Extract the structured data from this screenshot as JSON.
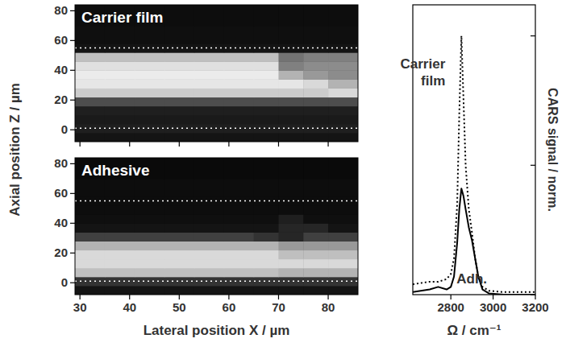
{
  "chart_data": [
    {
      "type": "heatmap",
      "title": "Carrier film",
      "ylabel": "Axial position Z / µm",
      "xlim": [
        29,
        86
      ],
      "ylim": [
        -8,
        84
      ],
      "xticks": [
        30,
        40,
        50,
        60,
        70,
        80
      ],
      "yticks": [
        0,
        20,
        40,
        60,
        80
      ],
      "tick_labels": "y",
      "zlim": [
        0,
        1
      ],
      "reference_lines": [
        1,
        55
      ],
      "x_edges": [
        29,
        35,
        41,
        47,
        53,
        59,
        65,
        70,
        75,
        80,
        86
      ],
      "y_edges": [
        -8,
        -2,
        4,
        10,
        16,
        22,
        28,
        34,
        40,
        46,
        52,
        58,
        70,
        84
      ],
      "cells": [
        [
          0.08,
          0.08,
          0.08,
          0.08,
          0.08,
          0.08,
          0.08,
          0.08,
          0.08,
          0.08
        ],
        [
          0.12,
          0.12,
          0.12,
          0.12,
          0.12,
          0.12,
          0.12,
          0.12,
          0.12,
          0.12
        ],
        [
          0.1,
          0.1,
          0.1,
          0.1,
          0.1,
          0.1,
          0.1,
          0.1,
          0.1,
          0.1
        ],
        [
          0.12,
          0.12,
          0.12,
          0.12,
          0.12,
          0.12,
          0.12,
          0.12,
          0.12,
          0.12
        ],
        [
          0.3,
          0.3,
          0.3,
          0.3,
          0.3,
          0.3,
          0.3,
          0.3,
          0.3,
          0.3
        ],
        [
          0.8,
          0.8,
          0.8,
          0.8,
          0.8,
          0.8,
          0.8,
          0.8,
          0.8,
          0.85
        ],
        [
          0.9,
          0.9,
          0.9,
          0.9,
          0.9,
          0.9,
          0.9,
          0.9,
          0.85,
          0.7
        ],
        [
          0.92,
          0.92,
          0.92,
          0.92,
          0.92,
          0.92,
          0.92,
          0.7,
          0.6,
          0.55
        ],
        [
          0.88,
          0.88,
          0.88,
          0.88,
          0.88,
          0.88,
          0.88,
          0.5,
          0.55,
          0.55
        ],
        [
          0.75,
          0.75,
          0.75,
          0.75,
          0.75,
          0.75,
          0.75,
          0.45,
          0.5,
          0.5
        ],
        [
          0.08,
          0.08,
          0.08,
          0.08,
          0.08,
          0.08,
          0.08,
          0.08,
          0.08,
          0.08
        ],
        [
          0.06,
          0.06,
          0.06,
          0.06,
          0.06,
          0.06,
          0.06,
          0.06,
          0.06,
          0.06
        ],
        [
          0.05,
          0.05,
          0.05,
          0.05,
          0.05,
          0.05,
          0.05,
          0.05,
          0.05,
          0.05
        ]
      ]
    },
    {
      "type": "heatmap",
      "title": "Adhesive",
      "xlabel": "Lateral position X / µm",
      "xlim": [
        29,
        86
      ],
      "ylim": [
        -8,
        84
      ],
      "xticks": [
        30,
        40,
        50,
        60,
        70,
        80
      ],
      "yticks": [
        0,
        20,
        40,
        60,
        80
      ],
      "tick_labels": true,
      "zlim": [
        0,
        1
      ],
      "reference_lines": [
        1,
        55
      ],
      "x_edges": [
        29,
        35,
        41,
        47,
        53,
        59,
        65,
        70,
        75,
        80,
        86
      ],
      "y_edges": [
        -8,
        -2,
        4,
        10,
        16,
        22,
        28,
        34,
        40,
        46,
        52,
        58,
        70,
        84
      ],
      "cells": [
        [
          0.08,
          0.08,
          0.08,
          0.08,
          0.08,
          0.08,
          0.08,
          0.08,
          0.08,
          0.08
        ],
        [
          0.2,
          0.2,
          0.2,
          0.2,
          0.2,
          0.2,
          0.2,
          0.2,
          0.2,
          0.2
        ],
        [
          0.75,
          0.75,
          0.75,
          0.75,
          0.75,
          0.75,
          0.75,
          0.7,
          0.7,
          0.7
        ],
        [
          0.85,
          0.85,
          0.85,
          0.85,
          0.85,
          0.85,
          0.85,
          0.85,
          0.85,
          0.85
        ],
        [
          0.85,
          0.85,
          0.85,
          0.85,
          0.85,
          0.85,
          0.85,
          0.75,
          0.75,
          0.75
        ],
        [
          0.7,
          0.7,
          0.7,
          0.7,
          0.7,
          0.7,
          0.7,
          0.6,
          0.6,
          0.6
        ],
        [
          0.25,
          0.25,
          0.25,
          0.25,
          0.25,
          0.25,
          0.2,
          0.15,
          0.25,
          0.25
        ],
        [
          0.08,
          0.08,
          0.08,
          0.08,
          0.08,
          0.08,
          0.08,
          0.15,
          0.15,
          0.08
        ],
        [
          0.06,
          0.06,
          0.06,
          0.06,
          0.06,
          0.06,
          0.06,
          0.12,
          0.06,
          0.06
        ],
        [
          0.05,
          0.05,
          0.05,
          0.05,
          0.05,
          0.05,
          0.05,
          0.05,
          0.05,
          0.05
        ],
        [
          0.05,
          0.05,
          0.05,
          0.05,
          0.05,
          0.05,
          0.05,
          0.05,
          0.05,
          0.05
        ],
        [
          0.05,
          0.05,
          0.05,
          0.05,
          0.05,
          0.05,
          0.05,
          0.05,
          0.05,
          0.05
        ],
        [
          0.04,
          0.04,
          0.04,
          0.04,
          0.04,
          0.04,
          0.04,
          0.04,
          0.04,
          0.04
        ]
      ]
    },
    {
      "type": "line",
      "xlabel": "Ω / cm⁻¹",
      "ylabel": "CARS signal / norm.",
      "xlim": [
        2620,
        3200
      ],
      "ylim": [
        0,
        1.12
      ],
      "xticks": [
        2800,
        3000,
        3200
      ],
      "yticks": [
        0,
        0.5,
        1
      ],
      "tick_labels": "x",
      "x": [
        2620,
        2700,
        2740,
        2780,
        2800,
        2815,
        2830,
        2840,
        2850,
        2860,
        2870,
        2885,
        2900,
        2915,
        2930,
        2950,
        2980,
        3050,
        3200
      ],
      "series": [
        {
          "name": "Carrier film",
          "color": "#000000",
          "line_style": "dotted",
          "values": [
            0.04,
            0.05,
            0.05,
            0.06,
            0.08,
            0.14,
            0.35,
            0.7,
            1.0,
            0.75,
            0.5,
            0.33,
            0.24,
            0.14,
            0.07,
            0.03,
            0.015,
            0.01,
            0.01
          ]
        },
        {
          "name": "Adh.",
          "color": "#000000",
          "line_style": "solid",
          "values": [
            0.01,
            0.02,
            0.03,
            0.02,
            0.03,
            0.07,
            0.2,
            0.33,
            0.41,
            0.38,
            0.33,
            0.26,
            0.21,
            0.14,
            0.07,
            0.02,
            0.005,
            0,
            0
          ]
        }
      ]
    }
  ]
}
